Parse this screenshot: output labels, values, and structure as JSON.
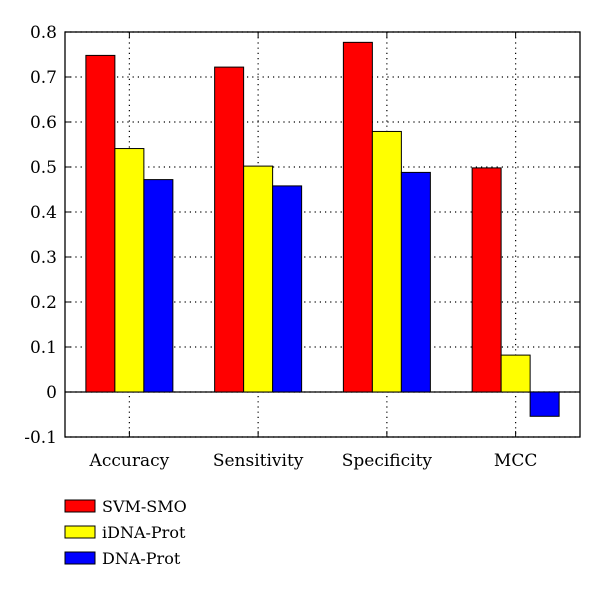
{
  "chart_data": {
    "type": "bar",
    "categories": [
      "Accuracy",
      "Sensitivity",
      "Specificity",
      "MCC"
    ],
    "series": [
      {
        "name": "SVM-SMO",
        "color": "#ff0000",
        "values": [
          0.748,
          0.722,
          0.777,
          0.498
        ]
      },
      {
        "name": "iDNA-Prot",
        "color": "#ffff00",
        "values": [
          0.541,
          0.502,
          0.579,
          0.082
        ]
      },
      {
        "name": "DNA-Prot",
        "color": "#0000ff",
        "values": [
          0.472,
          0.458,
          0.488,
          -0.054
        ]
      }
    ],
    "yticks": [
      "-0.1",
      "0",
      "0.1",
      "0.2",
      "0.3",
      "0.4",
      "0.5",
      "0.6",
      "0.7",
      "0.8"
    ],
    "ylim": [
      -0.1,
      0.8
    ],
    "grid": true,
    "grid_style": "dotted",
    "legend_position": "bottom-left",
    "title": "",
    "xlabel": "",
    "ylabel": ""
  }
}
